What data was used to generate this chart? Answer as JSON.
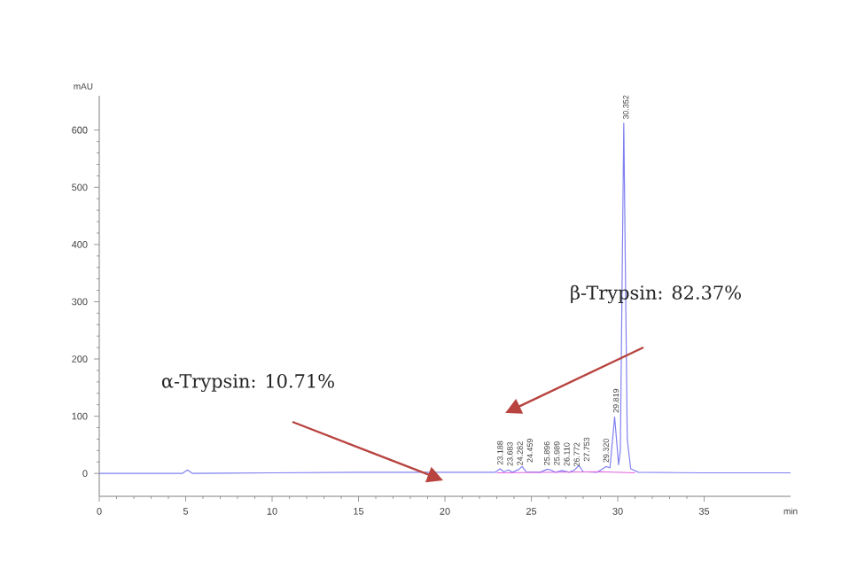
{
  "chart_data": {
    "type": "line",
    "xlabel": "min",
    "ylabel": "mAU",
    "xlim": [
      0,
      40
    ],
    "ylim": [
      -40,
      660
    ],
    "xticks": [
      0,
      5,
      10,
      15,
      20,
      25,
      30,
      35
    ],
    "yticks": [
      0,
      100,
      200,
      300,
      400,
      500,
      600
    ],
    "grid": false,
    "series": [
      {
        "color": "#8080f0",
        "x": [
          0,
          4.8,
          5.1,
          5.4,
          10,
          15,
          20,
          22.9,
          23.19,
          23.4,
          23.68,
          23.9,
          24.28,
          24.46,
          24.7,
          25.5,
          25.9,
          26.0,
          26.11,
          26.4,
          26.77,
          27.2,
          27.5,
          27.75,
          28.0,
          28.8,
          29.32,
          29.55,
          29.82,
          30.05,
          30.15,
          30.35,
          30.55,
          30.75,
          31.2,
          35,
          40
        ],
        "values": [
          0,
          0,
          6,
          0,
          1,
          2,
          2,
          2,
          8,
          3,
          6,
          2,
          7,
          12,
          3,
          2,
          7,
          7,
          6,
          2,
          5,
          2,
          6,
          14,
          3,
          2,
          12,
          10,
          99,
          15,
          40,
          612,
          60,
          8,
          2,
          1,
          1
        ]
      },
      {
        "color": "#e060e0",
        "x": [
          23,
          29,
          31
        ],
        "values": [
          1,
          3,
          1
        ]
      }
    ],
    "annotations": [
      "α-Trypsin: 10.71%",
      "β-Trypsin: 82.37%",
      {
        "text": "23.188",
        "x": 23.19,
        "y": 8
      },
      {
        "text": "23.683",
        "x": 23.68,
        "y": 6
      },
      {
        "text": "24.282",
        "x": 24.28,
        "y": 7
      },
      {
        "text": "24.459",
        "x": 24.46,
        "y": 12
      },
      {
        "text": "25.896",
        "x": 25.9,
        "y": 7
      },
      {
        "text": "25.989",
        "x": 26.0,
        "y": 7
      },
      {
        "text": "26.110",
        "x": 26.11,
        "y": 6
      },
      {
        "text": "26.772",
        "x": 26.77,
        "y": 5
      },
      {
        "text": "27.753",
        "x": 27.75,
        "y": 14
      },
      {
        "text": "29.320",
        "x": 29.32,
        "y": 12
      },
      {
        "text": "29.819",
        "x": 29.82,
        "y": 99
      },
      {
        "text": "30.352",
        "x": 30.35,
        "y": 612
      }
    ]
  }
}
